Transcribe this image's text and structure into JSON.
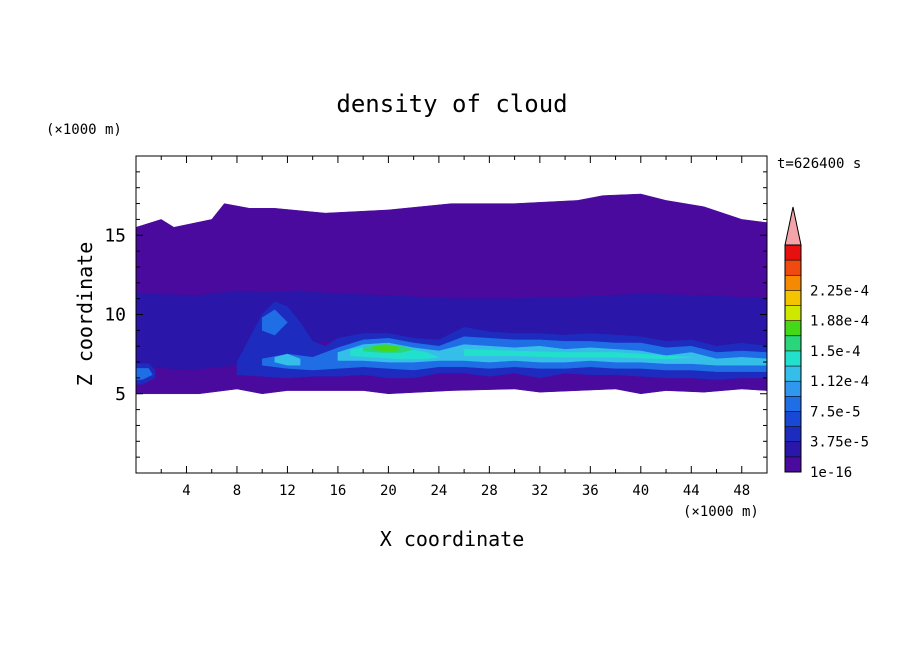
{
  "chart_data": {
    "type": "heatmap",
    "title": "density of cloud",
    "time_label": "t=626400 s",
    "xlabel": "X coordinate",
    "ylabel": "Z coordinate",
    "x_unit": "(×1000 m)",
    "y_unit": "(×1000 m)",
    "xlim": [
      0,
      50
    ],
    "ylim": [
      0,
      20
    ],
    "x_ticks": [
      4,
      8,
      12,
      16,
      20,
      24,
      28,
      32,
      36,
      40,
      44,
      48
    ],
    "y_ticks": [
      5,
      10,
      15
    ],
    "colorbar": {
      "labels": [
        "2.25e-4",
        "1.88e-4",
        "1.5e-4",
        "1.12e-4",
        "7.5e-5",
        "3.75e-5",
        "1e-16"
      ],
      "levels": [
        1e-16,
        1.875e-05,
        3.75e-05,
        5.625e-05,
        7.5e-05,
        9.375e-05,
        0.0001125,
        0.00013125,
        0.00015,
        0.00016875,
        0.0001875,
        0.00020625,
        0.000225,
        0.00024375
      ],
      "colors": [
        "#4a0a9e",
        "#2a16a8",
        "#1e2bbf",
        "#1a48d6",
        "#1f6ee6",
        "#2f97ee",
        "#35bfe8",
        "#22e0cc",
        "#2ad67a",
        "#44d818",
        "#cfe800",
        "#f5c400",
        "#f58a00",
        "#f04a10",
        "#e80f0f"
      ],
      "overflow_color": "#f4a3a8"
    },
    "field_layers": [
      {
        "level": "1e-16",
        "color": "#4a0a9e",
        "x": [
          0,
          2,
          3,
          6,
          7,
          9,
          11,
          15,
          20,
          25,
          30,
          35,
          37,
          40,
          42,
          45,
          48,
          50,
          50,
          48,
          45,
          42,
          40,
          38,
          35,
          32,
          30,
          25,
          20,
          18,
          15,
          12,
          10,
          8,
          5,
          2,
          0
        ],
        "y": [
          15.5,
          16,
          15.5,
          16,
          17,
          16.7,
          16.7,
          16.4,
          16.6,
          17,
          17,
          17.2,
          17.5,
          17.6,
          17.2,
          16.8,
          16,
          15.8,
          5.2,
          5.3,
          5.1,
          5.2,
          5,
          5.3,
          5.2,
          5.1,
          5.3,
          5.2,
          5,
          5.2,
          5.2,
          5.2,
          5,
          5.3,
          5,
          5,
          5
        ]
      },
      {
        "level": "1.875e-5",
        "color": "#2a16a8",
        "x": [
          0,
          5,
          8,
          10,
          13,
          16,
          20,
          25,
          30,
          35,
          40,
          45,
          50,
          50,
          45,
          40,
          35,
          30,
          25,
          20,
          16,
          12,
          8,
          4,
          0
        ],
        "y": [
          11.3,
          11.2,
          11.5,
          11.4,
          11.5,
          11.3,
          11.2,
          11,
          11,
          11.1,
          11.3,
          11.2,
          11,
          7.6,
          7.8,
          7.9,
          8,
          8.2,
          8.4,
          8.6,
          8.4,
          8,
          6.8,
          6.5,
          6.8
        ]
      },
      {
        "level": "3.75e-5",
        "color": "#1e2bbf",
        "x": [
          0,
          1,
          1.5,
          1.5,
          0.5,
          0
        ],
        "y": [
          6.9,
          6.9,
          6.5,
          6,
          5.6,
          5.6
        ]
      },
      {
        "level": "3.75e-5",
        "color": "#1e2bbf",
        "x": [
          8,
          9,
          10,
          11,
          12,
          13,
          14,
          15,
          16,
          18,
          20,
          22,
          24,
          26,
          28,
          30,
          32,
          34,
          36,
          38,
          40,
          42,
          44,
          46,
          48,
          50,
          50,
          48,
          46,
          44,
          42,
          40,
          38,
          36,
          34,
          32,
          30,
          28,
          26,
          24,
          22,
          20,
          18,
          16,
          14,
          12,
          10,
          8
        ],
        "y": [
          7,
          8.5,
          10,
          10.8,
          10.5,
          9.5,
          8.3,
          8,
          8.5,
          8.8,
          8.8,
          8.5,
          8.4,
          9.2,
          8.9,
          8.8,
          8.8,
          8.7,
          8.8,
          8.7,
          8.6,
          8.3,
          8.4,
          8,
          8.2,
          8,
          6,
          6,
          5.9,
          6,
          6,
          6.1,
          6.2,
          6.2,
          6.3,
          6,
          6.3,
          6.1,
          6.3,
          6.3,
          6,
          6,
          6.2,
          6.1,
          6.1,
          6,
          6.1,
          6.2
        ]
      },
      {
        "level": "7.5e-5",
        "color": "#1f6ee6",
        "x": [
          0,
          1,
          1.3,
          0.5,
          0
        ],
        "y": [
          6.6,
          6.6,
          6.2,
          5.9,
          5.9
        ]
      },
      {
        "level": "7.5e-5",
        "color": "#1f6ee6",
        "x": [
          10,
          11,
          12,
          11,
          10
        ],
        "y": [
          9.8,
          10.3,
          9.5,
          8.7,
          9
        ]
      },
      {
        "level": "7.5e-5",
        "color": "#1f6ee6",
        "x": [
          10,
          12,
          14,
          16,
          18,
          20,
          22,
          24,
          26,
          28,
          30,
          32,
          34,
          36,
          38,
          40,
          42,
          44,
          46,
          48,
          50,
          50,
          48,
          46,
          44,
          42,
          40,
          38,
          36,
          34,
          32,
          30,
          28,
          26,
          24,
          22,
          20,
          18,
          16,
          14,
          12,
          10
        ],
        "y": [
          7.2,
          7.5,
          7.3,
          7.9,
          8.4,
          8.5,
          8.2,
          8,
          8.6,
          8.5,
          8.4,
          8.4,
          8.3,
          8.3,
          8.2,
          8.2,
          7.9,
          8,
          7.6,
          7.7,
          7.6,
          6.4,
          6.4,
          6.4,
          6.5,
          6.5,
          6.6,
          6.6,
          6.7,
          6.6,
          6.6,
          6.7,
          6.6,
          6.7,
          6.7,
          6.5,
          6.6,
          6.7,
          6.6,
          6.5,
          6.6,
          6.8
        ]
      },
      {
        "level": "1.125e-4",
        "color": "#35bfe8",
        "x": [
          11,
          12,
          13,
          13,
          12,
          11
        ],
        "y": [
          7.3,
          7.5,
          7.2,
          6.8,
          6.8,
          7
        ]
      },
      {
        "level": "1.125e-4",
        "color": "#35bfe8",
        "x": [
          16,
          18,
          20,
          22,
          24,
          26,
          28,
          30,
          32,
          34,
          36,
          38,
          40,
          42,
          44,
          46,
          48,
          50,
          50,
          48,
          46,
          44,
          42,
          40,
          38,
          36,
          34,
          32,
          30,
          28,
          26,
          24,
          22,
          20,
          18,
          16
        ],
        "y": [
          7.6,
          8.1,
          8.2,
          7.9,
          7.7,
          8.1,
          8,
          7.9,
          8,
          7.8,
          7.9,
          7.8,
          7.7,
          7.4,
          7.6,
          7.2,
          7.3,
          7.2,
          6.8,
          6.8,
          6.8,
          6.9,
          6.9,
          7,
          7,
          7.1,
          7,
          7,
          7.1,
          7,
          7.1,
          7.1,
          7,
          7,
          7.1,
          7.1
        ]
      },
      {
        "level": "1.3125e-4",
        "color": "#22e0cc",
        "x": [
          17,
          19,
          21,
          23,
          24,
          23,
          21,
          19,
          17
        ],
        "y": [
          7.8,
          8,
          7.9,
          7.6,
          7.3,
          7.2,
          7.2,
          7.3,
          7.4
        ]
      },
      {
        "level": "1.3125e-4",
        "color": "#22e0cc",
        "x": [
          26,
          30,
          34,
          38,
          42,
          44,
          42,
          38,
          34,
          30,
          26
        ],
        "y": [
          7.8,
          7.7,
          7.6,
          7.6,
          7.4,
          7.3,
          7.2,
          7.3,
          7.3,
          7.4,
          7.4
        ]
      },
      {
        "level": "1.5e-4",
        "color": "#2ad67a",
        "x": [
          18,
          19.5,
          21,
          22,
          21,
          19.5,
          18
        ],
        "y": [
          7.9,
          8.1,
          8,
          7.8,
          7.6,
          7.6,
          7.7
        ]
      },
      {
        "level": "1.6875e-4",
        "color": "#44d818",
        "x": [
          18.8,
          19.8,
          20.8,
          20.8,
          19.8,
          18.8
        ],
        "y": [
          8,
          8.1,
          7.95,
          7.75,
          7.7,
          7.8
        ]
      }
    ]
  }
}
